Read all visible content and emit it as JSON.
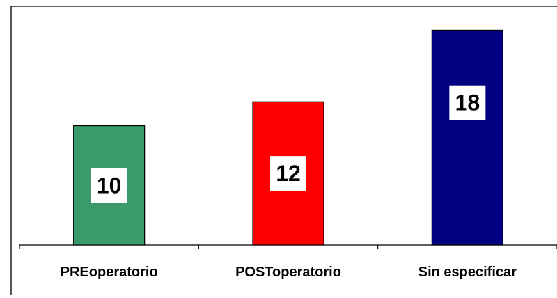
{
  "chart_data": {
    "type": "bar",
    "title": "",
    "xlabel": "",
    "ylabel": "",
    "categories": [
      "PREoperatorio",
      "POSToperatorio",
      "Sin especificar"
    ],
    "values": [
      10,
      12,
      18
    ],
    "colors": [
      "#3a9a6a",
      "#ff0000",
      "#000080"
    ],
    "ylim": [
      0,
      18.2
    ],
    "grid": false,
    "legend": "none"
  }
}
